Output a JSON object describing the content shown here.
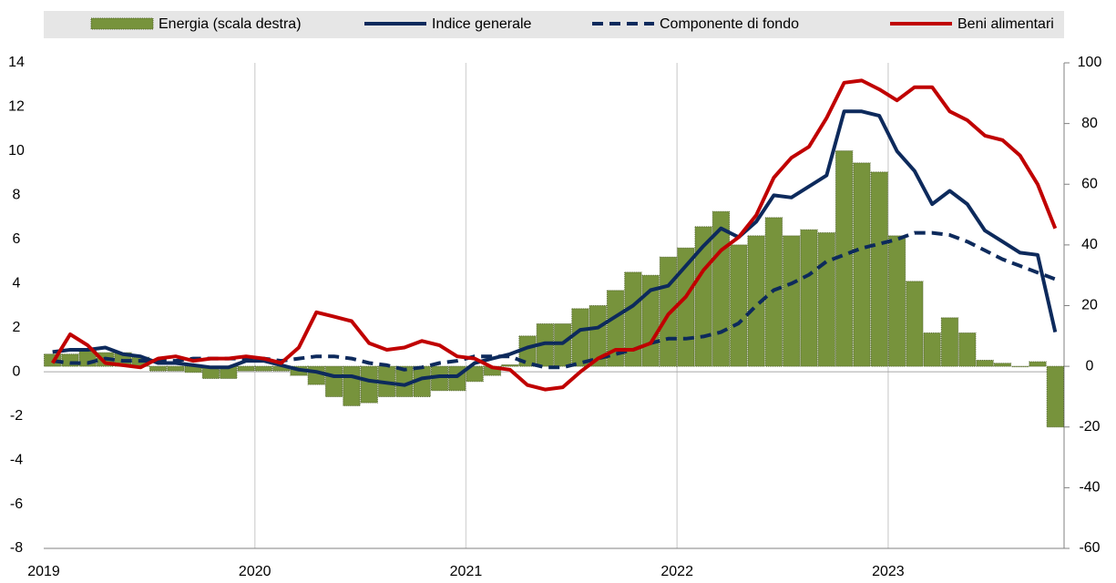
{
  "chart_data": {
    "type": "combo",
    "categories": [
      "2019",
      null,
      null,
      null,
      null,
      null,
      null,
      null,
      null,
      null,
      null,
      null,
      "2020",
      null,
      null,
      null,
      null,
      null,
      null,
      null,
      null,
      null,
      null,
      null,
      "2021",
      null,
      null,
      null,
      null,
      null,
      null,
      null,
      null,
      null,
      null,
      null,
      "2022",
      null,
      null,
      null,
      null,
      null,
      null,
      null,
      null,
      null,
      null,
      null,
      "2023",
      null,
      null,
      null,
      null,
      null,
      null,
      null,
      null,
      null
    ],
    "ylim": [
      -8,
      14
    ],
    "yticks": [
      -8,
      -6,
      -4,
      -2,
      0,
      2,
      4,
      6,
      8,
      10,
      12,
      14
    ],
    "y2lim": [
      -60,
      100
    ],
    "y2ticks": [
      -60,
      -40,
      -20,
      0,
      20,
      40,
      60,
      80,
      100
    ],
    "series": [
      {
        "name": "Energia (scala destra)",
        "kind": "bar",
        "axis": "y2",
        "color": "#77933c",
        "values": [
          4,
          4,
          5,
          4.5,
          4.5,
          3,
          -1.5,
          -1.5,
          -2,
          -4,
          -4,
          -1.5,
          -1.5,
          -1.5,
          -3,
          -6,
          -10,
          -13,
          -12,
          -10,
          -10,
          -10,
          -8,
          -8,
          -5,
          -3,
          0.5,
          10,
          14,
          14,
          19,
          20,
          25,
          31,
          30,
          36,
          39,
          46,
          51,
          40,
          43,
          49,
          43,
          45,
          44,
          71,
          67,
          64,
          43,
          28,
          11,
          16,
          11,
          2,
          1,
          0,
          1.5,
          -20
        ]
      },
      {
        "name": "Indice generale",
        "kind": "line",
        "color": "#0d2a5c",
        "values": [
          0.9,
          1.0,
          1.0,
          1.1,
          0.8,
          0.7,
          0.4,
          0.4,
          0.3,
          0.2,
          0.2,
          0.5,
          0.5,
          0.3,
          0.1,
          0.0,
          -0.2,
          -0.2,
          -0.4,
          -0.5,
          -0.6,
          -0.3,
          -0.2,
          -0.2,
          0.4,
          0.6,
          0.8,
          1.1,
          1.3,
          1.3,
          1.9,
          2.0,
          2.5,
          3.0,
          3.7,
          3.9,
          4.8,
          5.7,
          6.5,
          6.1,
          6.8,
          8.0,
          7.9,
          8.4,
          8.9,
          11.8,
          11.8,
          11.6,
          10.0,
          9.1,
          7.6,
          8.2,
          7.6,
          6.4,
          5.9,
          5.4,
          5.3,
          1.8
        ]
      },
      {
        "name": "Componente di fondo",
        "kind": "line",
        "dashed": true,
        "color": "#0d2a5c",
        "values": [
          0.5,
          0.4,
          0.4,
          0.6,
          0.5,
          0.5,
          0.5,
          0.5,
          0.6,
          0.6,
          0.6,
          0.6,
          0.6,
          0.5,
          0.6,
          0.7,
          0.7,
          0.6,
          0.4,
          0.3,
          0.1,
          0.2,
          0.4,
          0.5,
          0.7,
          0.7,
          0.7,
          0.4,
          0.2,
          0.2,
          0.4,
          0.6,
          0.8,
          1.0,
          1.3,
          1.5,
          1.5,
          1.6,
          1.8,
          2.2,
          3.0,
          3.7,
          4.0,
          4.4,
          5.0,
          5.3,
          5.6,
          5.8,
          6.0,
          6.3,
          6.3,
          6.2,
          5.9,
          5.5,
          5.1,
          4.8,
          4.5,
          4.2
        ]
      },
      {
        "name": "Beni alimentari",
        "kind": "line",
        "color": "#c00000",
        "values": [
          0.4,
          1.7,
          1.2,
          0.4,
          0.3,
          0.2,
          0.6,
          0.7,
          0.5,
          0.6,
          0.6,
          0.7,
          0.6,
          0.4,
          1.1,
          2.7,
          2.5,
          2.3,
          1.3,
          1.0,
          1.1,
          1.4,
          1.2,
          0.7,
          0.6,
          0.2,
          0.1,
          -0.6,
          -0.8,
          -0.7,
          0.0,
          0.6,
          1.0,
          1.0,
          1.3,
          2.6,
          3.4,
          4.6,
          5.5,
          6.1,
          7.1,
          8.8,
          9.7,
          10.2,
          11.5,
          13.1,
          13.2,
          12.8,
          12.3,
          12.9,
          12.9,
          11.8,
          11.4,
          10.7,
          10.5,
          9.8,
          8.5,
          6.5
        ]
      }
    ]
  }
}
